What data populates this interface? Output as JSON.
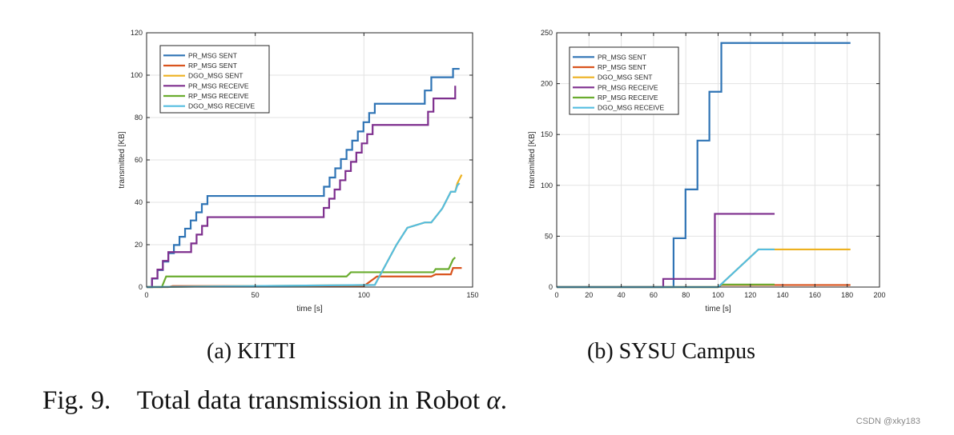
{
  "colors": {
    "pr_sent": "#2f74b5",
    "rp_sent": "#d9541e",
    "dgo_sent": "#edb120",
    "pr_recv": "#7e2f8e",
    "rp_recv": "#6aac2f",
    "dgo_recv": "#55bde0"
  },
  "chart_data": [
    {
      "type": "line",
      "subcaption": "(a) KITTI",
      "xlabel": "time [s]",
      "ylabel": "transmitted [KB]",
      "xlim": [
        0,
        150
      ],
      "ylim": [
        0,
        120
      ],
      "xticks": [
        0,
        50,
        100,
        150
      ],
      "yticks": [
        0,
        20,
        40,
        60,
        80,
        100,
        120
      ],
      "grid": true,
      "legend_position": "top-left",
      "series": [
        {
          "name": "PR_MSG SENT",
          "color_key": "pr_sent",
          "step": true,
          "x": [
            0,
            10,
            28,
            79,
            105,
            125,
            131,
            139,
            141,
            144
          ],
          "y": [
            0,
            16,
            43,
            43,
            86.5,
            86.5,
            99,
            99,
            103,
            103
          ]
        },
        {
          "name": "RP_MSG SENT",
          "color_key": "rp_sent",
          "step": false,
          "x": [
            0,
            10,
            12,
            100,
            106,
            131,
            133,
            140,
            141,
            145
          ],
          "y": [
            0,
            0,
            0.5,
            0.5,
            5,
            5,
            6,
            6,
            9,
            9
          ]
        },
        {
          "name": "DGO_MSG SENT",
          "color_key": "dgo_sent",
          "step": false,
          "x": [
            0,
            105,
            115,
            120,
            128,
            131,
            136,
            140,
            142,
            143,
            145
          ],
          "y": [
            0,
            1,
            20,
            28,
            30.5,
            30.5,
            37,
            45,
            45,
            49,
            53
          ]
        },
        {
          "name": "PR_MSG RECEIVE",
          "color_key": "pr_recv",
          "step": true,
          "x": [
            0,
            10,
            18,
            28,
            79,
            104,
            127,
            132,
            139,
            142
          ],
          "y": [
            0,
            16.5,
            16.5,
            33,
            33,
            76.5,
            76.5,
            89,
            89,
            95
          ]
        },
        {
          "name": "RP_MSG RECEIVE",
          "color_key": "rp_recv",
          "step": false,
          "x": [
            0,
            7,
            9,
            92,
            94,
            132,
            133,
            139,
            141,
            142
          ],
          "y": [
            0,
            0,
            5,
            5,
            7,
            7,
            8.5,
            8.5,
            13,
            14
          ]
        },
        {
          "name": "DGO_MSG RECEIVE",
          "color_key": "dgo_recv",
          "step": false,
          "x": [
            0,
            105,
            115,
            120,
            128,
            131,
            136,
            140,
            142,
            143,
            144
          ],
          "y": [
            0,
            1,
            20,
            28,
            30.5,
            30.5,
            37,
            45,
            45,
            48,
            49
          ]
        }
      ]
    },
    {
      "type": "line",
      "subcaption": "(b) SYSU Campus",
      "xlabel": "time [s]",
      "ylabel": "transmitted [KB]",
      "xlim": [
        0,
        200
      ],
      "ylim": [
        0,
        250
      ],
      "xticks": [
        0,
        20,
        40,
        60,
        80,
        100,
        120,
        140,
        160,
        180,
        200
      ],
      "yticks": [
        0,
        50,
        100,
        150,
        200,
        250
      ],
      "grid": true,
      "legend_position": "top-left",
      "series": [
        {
          "name": "PR_MSG SENT",
          "color_key": "pr_sent",
          "step": true,
          "x": [
            0,
            65,
            102,
            182
          ],
          "y": [
            0,
            0,
            240,
            240
          ]
        },
        {
          "name": "RP_MSG SENT",
          "color_key": "rp_sent",
          "step": false,
          "x": [
            0,
            100,
            102,
            182
          ],
          "y": [
            0,
            0,
            2,
            2
          ]
        },
        {
          "name": "DGO_MSG SENT",
          "color_key": "dgo_sent",
          "step": false,
          "x": [
            0,
            100,
            125,
            182
          ],
          "y": [
            0,
            0,
            37,
            37
          ]
        },
        {
          "name": "PR_MSG RECEIVE",
          "color_key": "pr_recv",
          "step": true,
          "x": [
            0,
            65,
            66,
            89,
            98,
            135
          ],
          "y": [
            0,
            0,
            8,
            8,
            72,
            72
          ]
        },
        {
          "name": "RP_MSG RECEIVE",
          "color_key": "rp_recv",
          "step": false,
          "x": [
            0,
            100,
            102,
            135
          ],
          "y": [
            0,
            0,
            2.5,
            2.5
          ]
        },
        {
          "name": "DGO_MSG RECEIVE",
          "color_key": "dgo_recv",
          "step": false,
          "x": [
            0,
            100,
            125,
            135
          ],
          "y": [
            0,
            0,
            37,
            37
          ]
        }
      ]
    }
  ],
  "caption": {
    "label": "Fig. 9.",
    "text": "Total data transmission in Robot ",
    "symbol": "α",
    "end": "."
  },
  "watermark": "CSDN @xky183"
}
